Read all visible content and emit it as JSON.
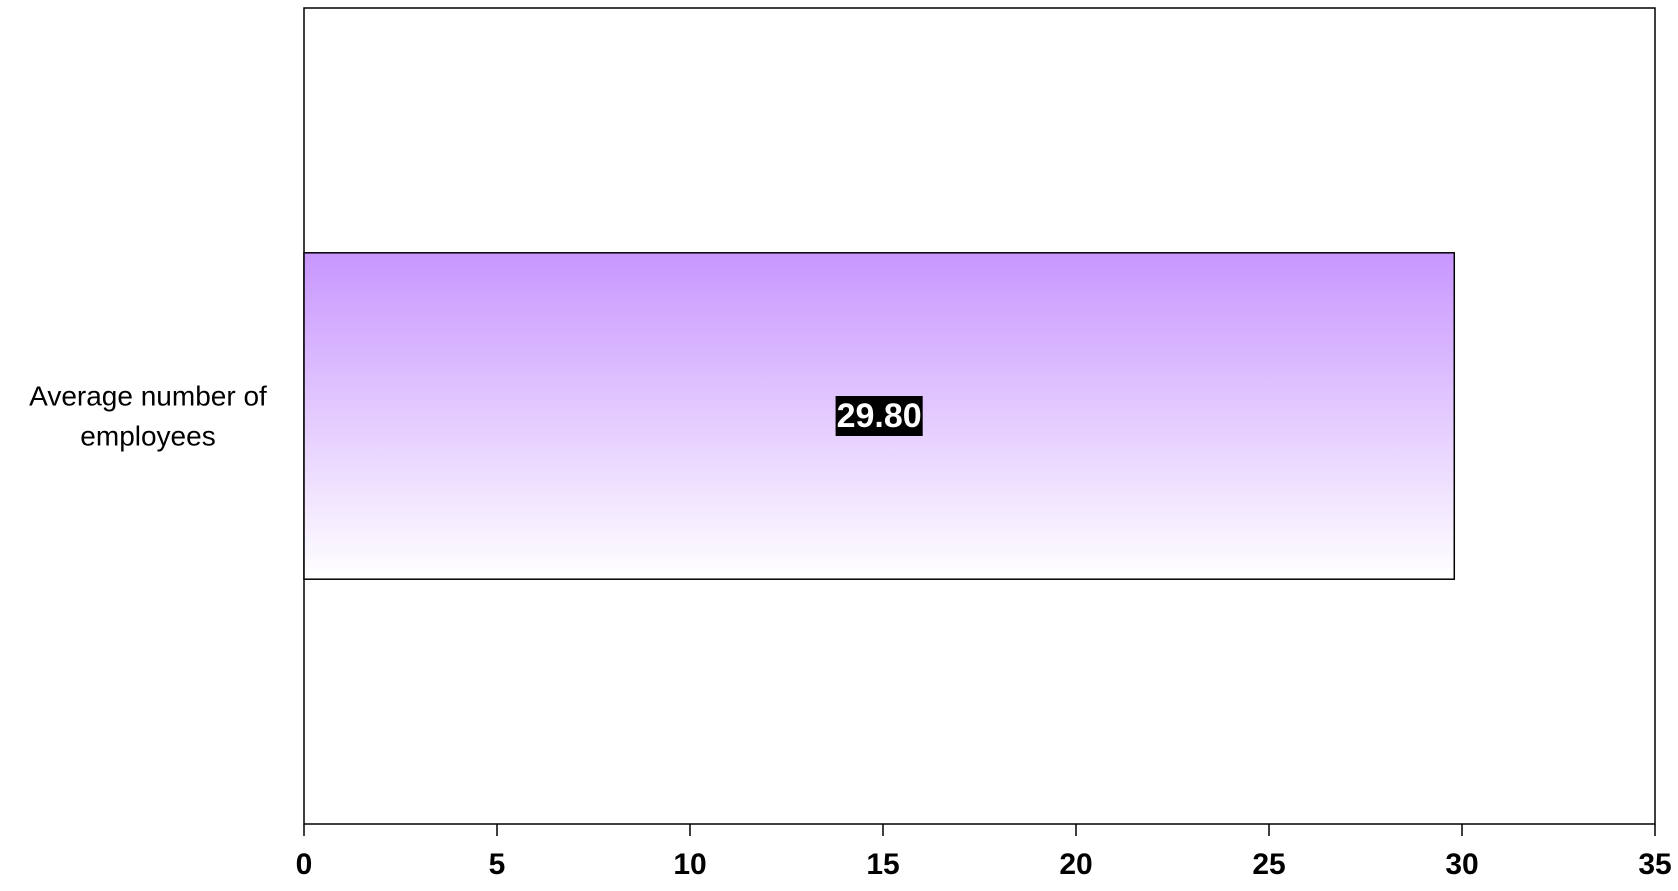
{
  "chart_data": {
    "type": "bar",
    "orientation": "horizontal",
    "categories": [
      "Average number of employees"
    ],
    "category_label_lines": [
      "Average number of",
      "employees"
    ],
    "series": [
      {
        "values": [
          29.8
        ],
        "data_labels": [
          "29.80"
        ],
        "fill_gradient": [
          "#c896ff",
          "#ffffff"
        ],
        "stroke": "#000000"
      }
    ],
    "xlim": [
      0,
      35
    ],
    "x_ticks": [
      0,
      5,
      10,
      15,
      20,
      25,
      30,
      35
    ],
    "x_tick_labels": [
      "0",
      "5",
      "10",
      "15",
      "20",
      "25",
      "30",
      "35"
    ],
    "grid": false,
    "legend": "none",
    "title": "",
    "xlabel": "",
    "ylabel": "",
    "data_label_style": {
      "background": "#000000",
      "color": "#ffffff"
    },
    "plot_area_border": "#000000"
  }
}
